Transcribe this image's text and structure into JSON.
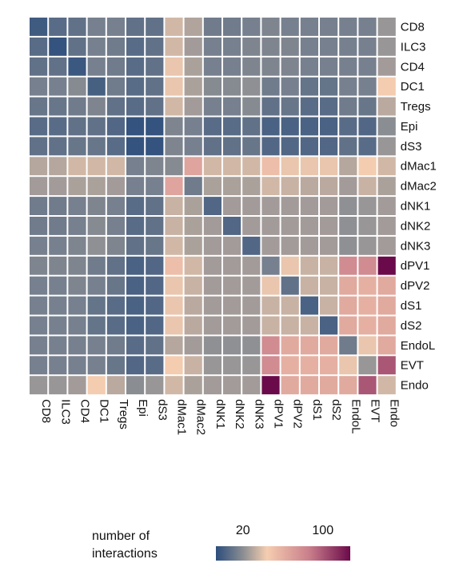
{
  "chart_data": {
    "type": "heatmap",
    "title": "",
    "row_labels": [
      "CD8",
      "ILC3",
      "CD4",
      "DC1",
      "Tregs",
      "Epi",
      "dS3",
      "dMac1",
      "dMac2",
      "dNK1",
      "dNK2",
      "dNK3",
      "dPV1",
      "dPV2",
      "dS1",
      "dS2",
      "EndoL",
      "EVT",
      "Endo"
    ],
    "col_labels": [
      "CD8",
      "ILC3",
      "CD4",
      "DC1",
      "Tregs",
      "Epi",
      "dS3",
      "dMac1",
      "dMac2",
      "dNK1",
      "dNK2",
      "dNK3",
      "dPV1",
      "dPV2",
      "dS1",
      "dS2",
      "EndoL",
      "EVT",
      "Endo"
    ],
    "values": [
      [
        5,
        12,
        14,
        20,
        20,
        14,
        14,
        40,
        33,
        18,
        18,
        20,
        22,
        20,
        20,
        20,
        20,
        20,
        28
      ],
      [
        12,
        2,
        14,
        20,
        18,
        12,
        14,
        40,
        30,
        20,
        20,
        22,
        22,
        22,
        20,
        20,
        20,
        20,
        28
      ],
      [
        14,
        14,
        4,
        20,
        18,
        12,
        14,
        45,
        32,
        20,
        20,
        22,
        22,
        22,
        20,
        20,
        20,
        20,
        30
      ],
      [
        20,
        20,
        24,
        7,
        18,
        12,
        14,
        45,
        32,
        24,
        24,
        26,
        18,
        20,
        15,
        15,
        20,
        20,
        48
      ],
      [
        16,
        16,
        18,
        22,
        14,
        12,
        14,
        40,
        30,
        20,
        20,
        24,
        14,
        16,
        12,
        12,
        18,
        16,
        35
      ],
      [
        12,
        12,
        14,
        14,
        10,
        2,
        2,
        22,
        20,
        12,
        12,
        14,
        8,
        8,
        8,
        8,
        12,
        10,
        25
      ],
      [
        14,
        14,
        16,
        16,
        12,
        2,
        2,
        22,
        20,
        14,
        14,
        16,
        10,
        10,
        10,
        10,
        14,
        12,
        28
      ],
      [
        34,
        34,
        40,
        40,
        40,
        20,
        22,
        24,
        68,
        40,
        40,
        40,
        55,
        45,
        45,
        45,
        34,
        48,
        40
      ],
      [
        30,
        30,
        32,
        32,
        30,
        20,
        20,
        68,
        18,
        32,
        32,
        32,
        40,
        38,
        35,
        35,
        30,
        38,
        32
      ],
      [
        18,
        18,
        20,
        22,
        20,
        12,
        14,
        38,
        32,
        10,
        30,
        30,
        30,
        30,
        30,
        30,
        26,
        28,
        30
      ],
      [
        18,
        18,
        20,
        24,
        20,
        12,
        14,
        38,
        32,
        30,
        10,
        30,
        30,
        30,
        30,
        30,
        26,
        28,
        30
      ],
      [
        20,
        20,
        22,
        26,
        22,
        14,
        16,
        40,
        32,
        30,
        30,
        10,
        30,
        30,
        30,
        30,
        26,
        28,
        30
      ],
      [
        22,
        22,
        22,
        18,
        14,
        8,
        10,
        55,
        40,
        30,
        30,
        30,
        20,
        45,
        38,
        38,
        80,
        80,
        125
      ],
      [
        20,
        20,
        22,
        20,
        16,
        8,
        10,
        45,
        38,
        30,
        30,
        30,
        45,
        14,
        38,
        38,
        65,
        62,
        65
      ],
      [
        20,
        20,
        20,
        15,
        12,
        8,
        10,
        45,
        35,
        30,
        30,
        30,
        38,
        38,
        8,
        38,
        65,
        62,
        65
      ],
      [
        20,
        20,
        20,
        15,
        12,
        8,
        10,
        45,
        35,
        30,
        30,
        30,
        38,
        38,
        38,
        8,
        65,
        62,
        65
      ],
      [
        20,
        20,
        20,
        20,
        18,
        12,
        14,
        34,
        30,
        26,
        26,
        26,
        80,
        65,
        65,
        65,
        18,
        45,
        65
      ],
      [
        20,
        20,
        20,
        20,
        16,
        10,
        12,
        48,
        38,
        28,
        28,
        28,
        80,
        62,
        62,
        62,
        45,
        28,
        100
      ],
      [
        28,
        28,
        30,
        48,
        35,
        25,
        28,
        40,
        32,
        30,
        30,
        30,
        125,
        65,
        65,
        65,
        65,
        100,
        40
      ]
    ],
    "colorbar": {
      "label": "number of interactions",
      "ticks": [
        20,
        100
      ],
      "range": [
        0,
        125
      ],
      "colors": [
        "#2c4e7c",
        "#8a8d92",
        "#f5cdb0",
        "#c87d8a",
        "#6b0a4a"
      ]
    }
  },
  "legend": {
    "title_line1": "number of",
    "title_line2": "interactions",
    "tick_20": "20",
    "tick_100": "100"
  }
}
